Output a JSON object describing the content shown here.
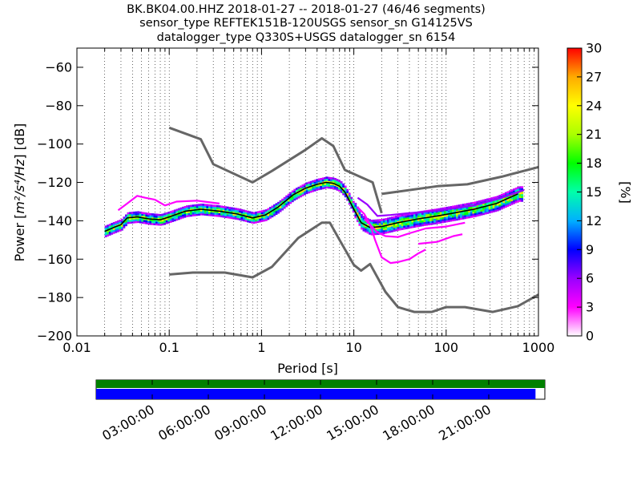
{
  "chart_data": [
    {
      "type": "heatmap",
      "title_lines": [
        "BK.BK04.00.HHZ   2018-01-27 -- 2018-01-27  (46/46 segments)",
        "sensor_type REFTEK151B-120USGS sensor_sn G14125VS",
        "datalogger_type Q330S+USGS datalogger_sn 6154"
      ],
      "xlabel": "Period [s]",
      "ylabel_prefix": "Power [",
      "ylabel_math": "m²/s⁴/Hz",
      "ylabel_suffix": "] [dB]",
      "xscale": "log",
      "xlim": [
        0.01,
        1000
      ],
      "ylim": [
        -200,
        -50
      ],
      "x_ticks": [
        {
          "value": 0.01,
          "label": "0.01"
        },
        {
          "value": 0.1,
          "label": "0.1"
        },
        {
          "value": 1,
          "label": "1"
        },
        {
          "value": 10,
          "label": "10"
        },
        {
          "value": 100,
          "label": "100"
        },
        {
          "value": 1000,
          "label": "1000"
        }
      ],
      "y_ticks": [
        {
          "value": -60,
          "label": "−60"
        },
        {
          "value": -80,
          "label": "−80"
        },
        {
          "value": -100,
          "label": "−100"
        },
        {
          "value": -120,
          "label": "−120"
        },
        {
          "value": -140,
          "label": "−140"
        },
        {
          "value": -160,
          "label": "−160"
        },
        {
          "value": -180,
          "label": "−180"
        },
        {
          "value": -200,
          "label": "−200"
        }
      ],
      "grid": "dotted vertical at each log period",
      "colorbar": {
        "label": "[%]",
        "range": [
          0,
          30
        ],
        "ticks": [
          {
            "value": 0,
            "label": "0"
          },
          {
            "value": 3,
            "label": "3"
          },
          {
            "value": 6,
            "label": "6"
          },
          {
            "value": 9,
            "label": "9"
          },
          {
            "value": 12,
            "label": "12"
          },
          {
            "value": 15,
            "label": "15"
          },
          {
            "value": 18,
            "label": "18"
          },
          {
            "value": 21,
            "label": "21"
          },
          {
            "value": 24,
            "label": "24"
          },
          {
            "value": 27,
            "label": "27"
          },
          {
            "value": 30,
            "label": "30"
          }
        ],
        "colors": [
          "#ffffff",
          "#ff00ff",
          "#9900ff",
          "#0000ff",
          "#00b0ff",
          "#00ffaa",
          "#00ff00",
          "#aaff00",
          "#ffff00",
          "#ffaa00",
          "#ff0000"
        ]
      },
      "series": [
        {
          "name": "",
          "color": "#666666",
          "x": [
            0.1,
            0.22,
            0.3,
            0.8,
            1.3,
            3,
            4.5,
            6,
            8,
            16,
            20
          ],
          "y": [
            -91.5,
            -97.5,
            -110.5,
            -120,
            -114,
            -103,
            -97,
            -101,
            -113.5,
            -120,
            -136
          ]
        },
        {
          "name": "",
          "color": "#666666",
          "x": [
            20,
            80,
            170,
            400,
            1000
          ],
          "y": [
            -126,
            -122,
            -121,
            -117,
            -112
          ]
        },
        {
          "name": "",
          "color": "#666666",
          "x": [
            0.1,
            0.18,
            0.4,
            0.8,
            1.3,
            2.5,
            4.5,
            5.5,
            7,
            10,
            12,
            15,
            22,
            30,
            45,
            70,
            100,
            160,
            320,
            600,
            1000
          ],
          "y": [
            -168,
            -167,
            -167,
            -169.5,
            -164,
            -149,
            -141,
            -141,
            -150,
            -163,
            -166,
            -162.5,
            -177,
            -185,
            -187.5,
            -187.5,
            -185,
            -185,
            -187.5,
            -184.5,
            -178.5
          ]
        },
        {
          "name": "",
          "color": "#000000",
          "x": [
            0.02,
            0.025,
            0.03,
            0.035,
            0.045,
            0.06,
            0.08,
            0.1,
            0.15,
            0.22,
            0.35,
            0.55,
            0.8,
            1.1,
            1.5,
            2.2,
            3,
            4,
            5,
            6,
            7,
            8,
            10,
            12,
            15,
            20,
            30,
            50,
            80,
            120,
            200,
            350,
            600
          ],
          "y": [
            -145.5,
            -143.5,
            -142,
            -138.5,
            -138,
            -139,
            -139.5,
            -138,
            -135,
            -134,
            -135,
            -136.5,
            -138.5,
            -137,
            -133,
            -126.5,
            -123,
            -121,
            -120,
            -120.5,
            -122,
            -125,
            -134,
            -141,
            -143.5,
            -143,
            -141,
            -139,
            -137.5,
            -136,
            -134,
            -131,
            -126
          ]
        },
        {
          "name": "",
          "color": "#ff00ff",
          "x": [
            0.028,
            0.035,
            0.045,
            0.055,
            0.07,
            0.09,
            0.12,
            0.2,
            0.35
          ],
          "y": [
            -134.5,
            -131,
            -127,
            -128,
            -129,
            -132,
            -130,
            -129.5,
            -131
          ]
        },
        {
          "name": "",
          "color": "#ff00ff",
          "x": [
            11,
            13,
            15,
            17,
            20,
            25,
            30,
            40,
            50,
            60
          ],
          "y": [
            -133,
            -136.5,
            -142,
            -150,
            -159,
            -162,
            -161.5,
            -160,
            -157,
            -155
          ]
        },
        {
          "name": "",
          "color": "#ff00ff",
          "x": [
            13,
            15,
            18,
            22,
            30,
            40,
            60,
            100,
            160
          ],
          "y": [
            -139,
            -142,
            -146,
            -148,
            -148.5,
            -146.5,
            -144,
            -143,
            -141
          ]
        },
        {
          "name": "",
          "color": "#ff00ff",
          "x": [
            50,
            80,
            120,
            150
          ],
          "y": [
            -152,
            -151,
            -148,
            -147
          ]
        },
        {
          "name": "",
          "color": "#9900ff",
          "x": [
            11,
            14,
            18,
            25,
            40,
            70,
            120,
            200,
            400,
            700
          ],
          "y": [
            -128,
            -131.5,
            -137.5,
            -137,
            -136,
            -135,
            -133.5,
            -132,
            -128,
            -124
          ]
        }
      ]
    },
    {
      "type": "timeline",
      "ticks": [
        {
          "time": "03:00:00",
          "label": "03:00:00"
        },
        {
          "time": "06:00:00",
          "label": "06:00:00"
        },
        {
          "time": "09:00:00",
          "label": "09:00:00"
        },
        {
          "time": "12:00:00",
          "label": "12:00:00"
        },
        {
          "time": "15:00:00",
          "label": "15:00:00"
        },
        {
          "time": "18:00:00",
          "label": "18:00:00"
        },
        {
          "time": "21:00:00",
          "label": "21:00:00"
        }
      ],
      "range_hours": [
        0,
        24
      ],
      "upper_bar": {
        "color": "#008000",
        "start_hour": 0,
        "end_hour": 24
      },
      "lower_bar": {
        "color": "#0000ff",
        "start_hour": 0,
        "end_hour": 23.5
      }
    }
  ]
}
